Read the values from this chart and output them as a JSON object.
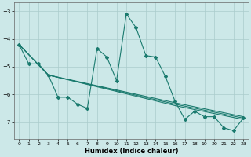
{
  "xlabel": "Humidex (Indice chaleur)",
  "background_color": "#cce8e8",
  "grid_color": "#aacccc",
  "line_color": "#1a7a6e",
  "xlim": [
    -0.5,
    23.5
  ],
  "ylim": [
    -7.6,
    -2.7
  ],
  "yticks": [
    -7,
    -6,
    -5,
    -4,
    -3
  ],
  "xticks": [
    0,
    1,
    2,
    3,
    4,
    5,
    6,
    7,
    8,
    9,
    10,
    11,
    12,
    13,
    14,
    15,
    16,
    17,
    18,
    19,
    20,
    21,
    22,
    23
  ],
  "series1_x": [
    0,
    1,
    2,
    3,
    4,
    5,
    6,
    7,
    8,
    9,
    10,
    11,
    12,
    13,
    14,
    15,
    16,
    17,
    18,
    19,
    20,
    21,
    22,
    23
  ],
  "series1_y": [
    -4.2,
    -4.9,
    -4.9,
    -5.3,
    -6.1,
    -6.1,
    -6.35,
    -6.5,
    -4.35,
    -4.65,
    -5.5,
    -3.1,
    -3.6,
    -4.6,
    -4.65,
    -5.35,
    -6.25,
    -6.9,
    -6.6,
    -6.8,
    -6.8,
    -7.2,
    -7.3,
    -6.85
  ],
  "series2_x": [
    0,
    3,
    16,
    23
  ],
  "series2_y": [
    -4.2,
    -5.3,
    -6.3,
    -6.8
  ],
  "series3_x": [
    0,
    3,
    16,
    23
  ],
  "series3_y": [
    -4.2,
    -5.3,
    -6.35,
    -6.85
  ],
  "series4_x": [
    0,
    3,
    16,
    23
  ],
  "series4_y": [
    -4.2,
    -5.3,
    -6.4,
    -6.9
  ]
}
